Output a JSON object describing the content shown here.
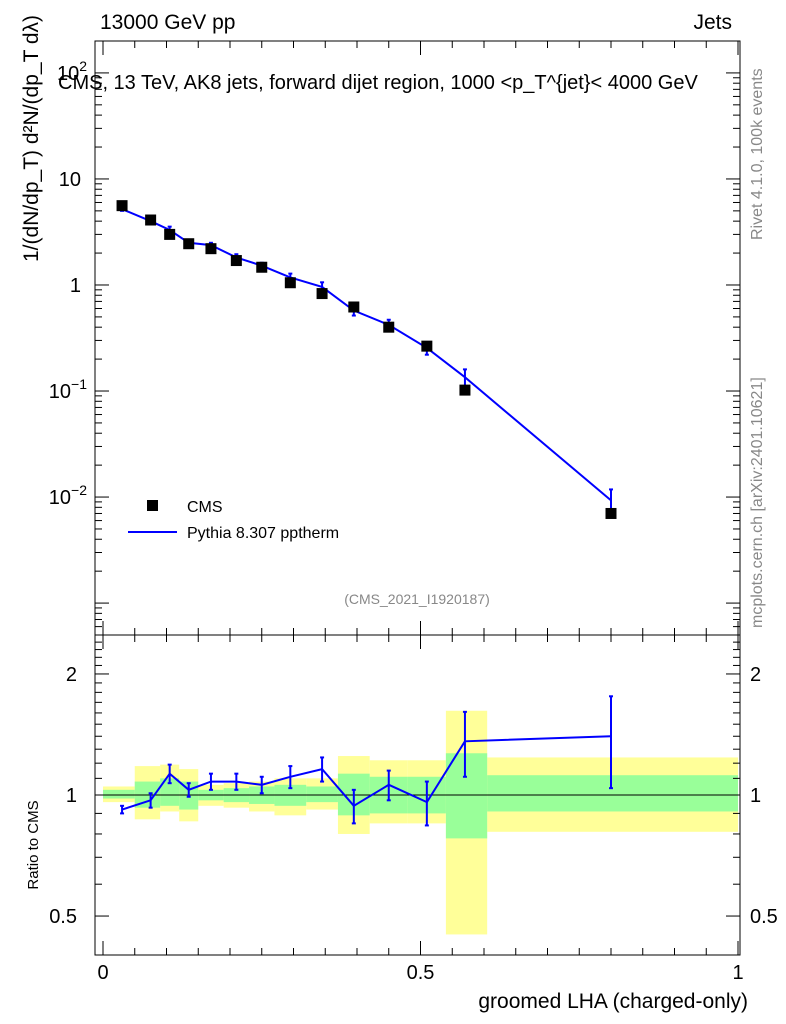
{
  "header": {
    "left": "13000 GeV pp",
    "right": "Jets"
  },
  "side": {
    "rivet": "Rivet 4.1.0,  100k events",
    "mcplots": "mcplots.cern.ch [arXiv:2401.10621]"
  },
  "watermark": "(CMS_2021_I1920187)",
  "colors": {
    "data": "#000000",
    "mc": "#0000ff",
    "band_inner": "#99ff99",
    "band_outer": "#ffff99"
  },
  "chart_data": [
    {
      "type": "scatter",
      "title": "CMS, 13 TeV, AK8 jets, forward dijet region, 1000 <p_T^{jet}< 4000 GeV",
      "ylabel": "1/(dN/dp_T) d²N/(dp_T dλ)",
      "yscale": "log",
      "ylim": [
        0.0005,
        200
      ],
      "xlim": [
        0,
        1
      ],
      "yticks": [
        {
          "v": 0.01,
          "mant": "10",
          "exp": "−2"
        },
        {
          "v": 0.1,
          "mant": "10",
          "exp": "−1"
        },
        {
          "v": 1,
          "mant": "1",
          "exp": ""
        },
        {
          "v": 10,
          "mant": "10",
          "exp": ""
        },
        {
          "v": 100,
          "mant": "10",
          "exp": "2"
        }
      ],
      "legend": [
        "CMS",
        "Pythia 8.307 pptherm"
      ],
      "series": [
        {
          "name": "CMS",
          "x": [
            0.03,
            0.075,
            0.105,
            0.135,
            0.17,
            0.21,
            0.25,
            0.295,
            0.345,
            0.395,
            0.45,
            0.51,
            0.57,
            0.8
          ],
          "y": [
            5.6,
            4.1,
            3.0,
            2.45,
            2.2,
            1.7,
            1.47,
            1.05,
            0.83,
            0.62,
            0.4,
            0.265,
            0.102,
            0.007
          ]
        },
        {
          "name": "Pythia 8.307 pptherm",
          "x": [
            0.03,
            0.075,
            0.105,
            0.135,
            0.17,
            0.21,
            0.25,
            0.295,
            0.345,
            0.395,
            0.45,
            0.51,
            0.57,
            0.8
          ],
          "y": [
            5.2,
            4.0,
            3.3,
            2.5,
            2.38,
            1.82,
            1.52,
            1.18,
            0.96,
            0.575,
            0.42,
            0.255,
            0.135,
            0.0093
          ],
          "yerr": [
            0.2,
            0.15,
            0.25,
            0.15,
            0.12,
            0.13,
            0.1,
            0.1,
            0.1,
            0.06,
            0.05,
            0.035,
            0.025,
            0.0025
          ]
        }
      ]
    },
    {
      "type": "line",
      "ylabel": "Ratio to CMS",
      "yscale": "log",
      "ylim": [
        0.4,
        2.5
      ],
      "xlim": [
        0,
        1
      ],
      "xlabel": "groomed LHA (charged-only)",
      "xticks": [
        {
          "v": 0,
          "label": "0"
        },
        {
          "v": 0.5,
          "label": "0.5"
        },
        {
          "v": 1,
          "label": "1"
        }
      ],
      "yticks": [
        {
          "v": 0.5,
          "label": "0.5"
        },
        {
          "v": 1,
          "label": "1"
        },
        {
          "v": 2,
          "label": "2"
        }
      ],
      "bands": [
        {
          "x0": 0.0,
          "x1": 0.05,
          "lo2": 0.96,
          "hi2": 1.05,
          "lo1": 0.98,
          "hi1": 1.03
        },
        {
          "x0": 0.05,
          "x1": 0.09,
          "lo2": 0.87,
          "hi2": 1.18,
          "lo1": 0.93,
          "hi1": 1.08
        },
        {
          "x0": 0.09,
          "x1": 0.12,
          "lo2": 0.91,
          "hi2": 1.19,
          "lo1": 0.94,
          "hi1": 1.1
        },
        {
          "x0": 0.12,
          "x1": 0.15,
          "lo2": 0.86,
          "hi2": 1.16,
          "lo1": 0.92,
          "hi1": 1.08
        },
        {
          "x0": 0.15,
          "x1": 0.19,
          "lo2": 0.94,
          "hi2": 1.06,
          "lo1": 0.97,
          "hi1": 1.03
        },
        {
          "x0": 0.19,
          "x1": 0.23,
          "lo2": 0.93,
          "hi2": 1.07,
          "lo1": 0.96,
          "hi1": 1.04
        },
        {
          "x0": 0.23,
          "x1": 0.27,
          "lo2": 0.91,
          "hi2": 1.08,
          "lo1": 0.95,
          "hi1": 1.05
        },
        {
          "x0": 0.27,
          "x1": 0.32,
          "lo2": 0.89,
          "hi2": 1.1,
          "lo1": 0.94,
          "hi1": 1.06
        },
        {
          "x0": 0.32,
          "x1": 0.37,
          "lo2": 0.92,
          "hi2": 1.1,
          "lo1": 0.96,
          "hi1": 1.05
        },
        {
          "x0": 0.37,
          "x1": 0.42,
          "lo2": 0.8,
          "hi2": 1.25,
          "lo1": 0.89,
          "hi1": 1.13
        },
        {
          "x0": 0.42,
          "x1": 0.48,
          "lo2": 0.85,
          "hi2": 1.22,
          "lo1": 0.9,
          "hi1": 1.11
        },
        {
          "x0": 0.48,
          "x1": 0.54,
          "lo2": 0.85,
          "hi2": 1.22,
          "lo1": 0.9,
          "hi1": 1.11
        },
        {
          "x0": 0.54,
          "x1": 0.605,
          "lo2": 0.45,
          "hi2": 1.62,
          "lo1": 0.78,
          "hi1": 1.27
        },
        {
          "x0": 0.605,
          "x1": 1.0,
          "lo2": 0.81,
          "hi2": 1.24,
          "lo1": 0.91,
          "hi1": 1.12
        }
      ],
      "series": [
        {
          "name": "Pythia 8.307 pptherm / CMS",
          "x": [
            0.03,
            0.075,
            0.105,
            0.135,
            0.17,
            0.21,
            0.25,
            0.295,
            0.345,
            0.395,
            0.45,
            0.51,
            0.57,
            0.8
          ],
          "y": [
            0.92,
            0.97,
            1.13,
            1.03,
            1.08,
            1.08,
            1.06,
            1.11,
            1.16,
            0.94,
            1.06,
            0.96,
            1.36,
            1.4
          ],
          "yerr": [
            0.02,
            0.04,
            0.06,
            0.04,
            0.05,
            0.05,
            0.05,
            0.07,
            0.08,
            0.09,
            0.09,
            0.12,
            0.25,
            0.36
          ]
        }
      ]
    }
  ]
}
